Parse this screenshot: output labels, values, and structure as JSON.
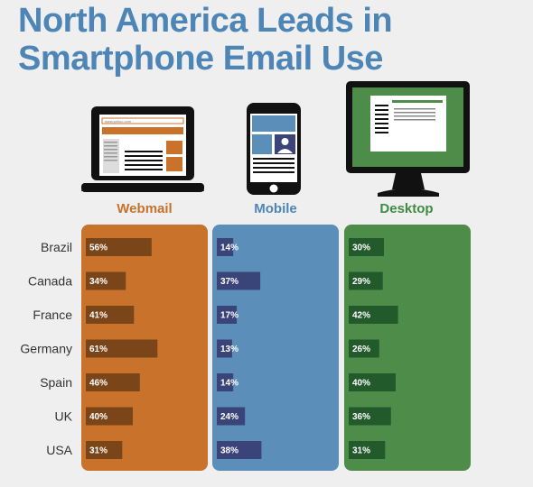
{
  "title": {
    "line1": "North America Leads in",
    "line2": "Smartphone Email Use"
  },
  "device_icons": {
    "webmail": "laptop-icon",
    "mobile": "smartphone-icon",
    "desktop": "desktop-monitor-icon",
    "laptop_url_text": "www.yahoo.com"
  },
  "chart_data": {
    "type": "bar",
    "orientation": "horizontal",
    "categories": [
      "Brazil",
      "Canada",
      "France",
      "Germany",
      "Spain",
      "UK",
      "USA"
    ],
    "series": [
      {
        "name": "Webmail",
        "values": [
          56,
          34,
          41,
          61,
          46,
          40,
          31
        ],
        "labels": [
          "56%",
          "34%",
          "41%",
          "61%",
          "46%",
          "40%",
          "31%"
        ],
        "panel_color": "#c8722c",
        "bar_color": "#7a4619",
        "header_color": "#c8722c"
      },
      {
        "name": "Mobile",
        "values": [
          14,
          37,
          17,
          13,
          14,
          24,
          38
        ],
        "labels": [
          "14%",
          "37%",
          "17%",
          "13%",
          "14%",
          "24%",
          "38%"
        ],
        "panel_color": "#5b8fb9",
        "bar_color": "#3b4478",
        "header_color": "#4d86b6"
      },
      {
        "name": "Desktop",
        "values": [
          30,
          29,
          42,
          26,
          40,
          36,
          31
        ],
        "labels": [
          "30%",
          "29%",
          "42%",
          "26%",
          "40%",
          "36%",
          "31%"
        ],
        "panel_color": "#4e8c4a",
        "bar_color": "#235a2c",
        "header_color": "#3f8a44"
      }
    ],
    "value_unit": "%"
  }
}
